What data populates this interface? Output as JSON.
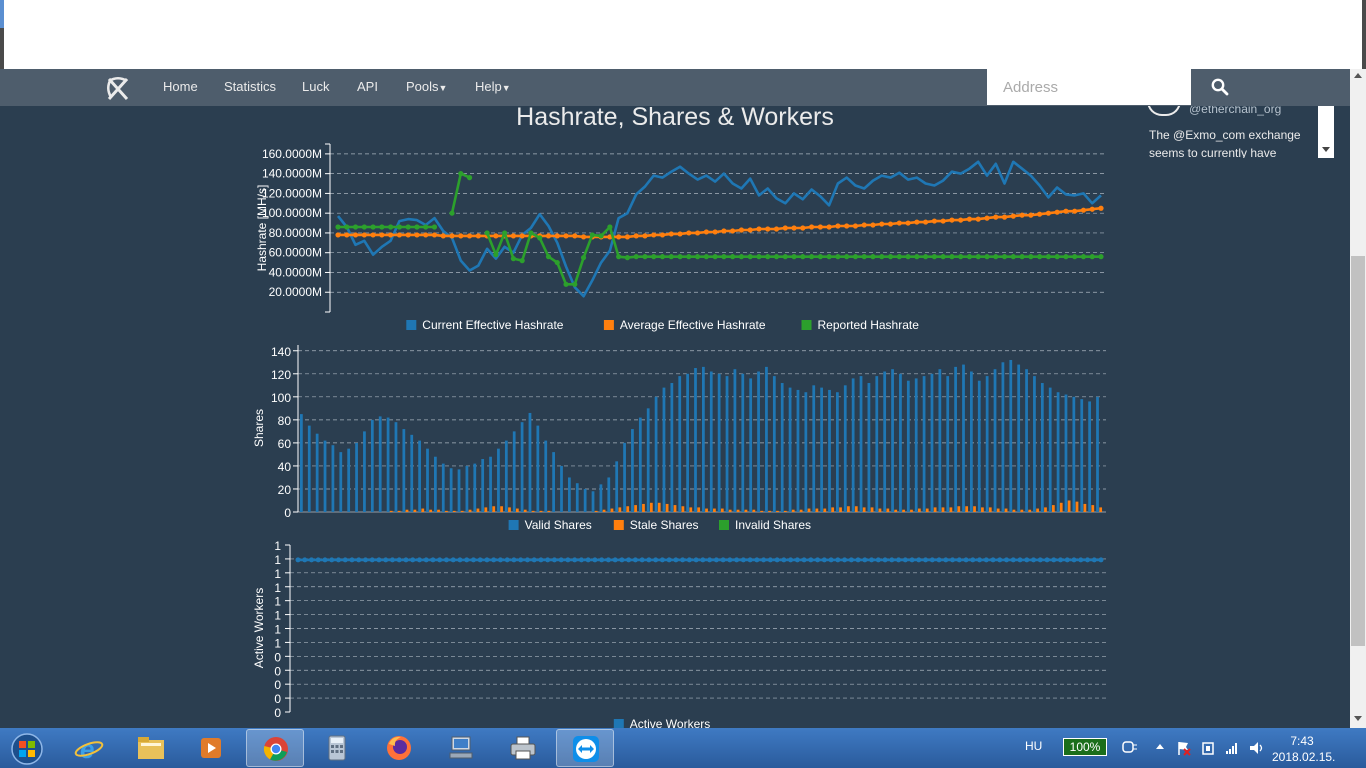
{
  "nav": {
    "items": [
      "Home",
      "Statistics",
      "Luck",
      "API",
      "Pools",
      "Help"
    ],
    "search_placeholder": "Address"
  },
  "page_title": "Hashrate, Shares & Workers",
  "twitter": {
    "handle": "@etherchain_org",
    "text": "The @Exmo_com exchange seems to currently have"
  },
  "taskbar": {
    "language": "HU",
    "battery": "100%",
    "time": "7:43",
    "date": "2018.02.15."
  },
  "colors": {
    "blue": "#1f77b4",
    "orange": "#ff7f0e",
    "green": "#2ca02c",
    "background": "#2b3e50"
  },
  "icons": [
    "pickaxe-logo-icon",
    "search-icon",
    "start-orb-icon",
    "internet-explorer-icon",
    "file-explorer-icon",
    "media-player-icon",
    "chrome-icon",
    "calculator-icon",
    "firefox-icon",
    "network-computer-icon",
    "printer-icon",
    "teamviewer-icon"
  ],
  "chart_data": [
    {
      "type": "line",
      "ylabel": "Hashrate [MH/s]",
      "ytick_labels": [
        "20.0000M",
        "40.0000M",
        "60.0000M",
        "80.0000M",
        "100.0000M",
        "120.0000M",
        "140.0000M",
        "160.0000M"
      ],
      "ylim": [
        0,
        170
      ],
      "legend_position": "bottom",
      "grid": true,
      "series": [
        {
          "name": "Current Effective Hashrate",
          "color": "#1f77b4",
          "values": [
            97,
            86,
            68,
            72,
            58,
            66,
            72,
            92,
            94,
            93,
            88,
            95,
            82,
            75,
            52,
            42,
            47,
            64,
            54,
            66,
            60,
            78,
            85,
            99,
            87,
            70,
            46,
            25,
            16,
            32,
            50,
            62,
            95,
            100,
            119,
            127,
            138,
            136,
            142,
            147,
            140,
            134,
            138,
            132,
            140,
            130,
            125,
            135,
            118,
            125,
            115,
            110,
            120,
            114,
            124,
            117,
            108,
            130,
            136,
            128,
            125,
            133,
            138,
            136,
            141,
            134,
            136,
            130,
            128,
            133,
            142,
            140,
            145,
            152,
            138,
            150,
            130,
            152,
            145,
            138,
            128,
            116,
            126,
            119,
            118,
            120,
            110,
            118
          ]
        },
        {
          "name": "Average Effective Hashrate",
          "color": "#ff7f0e",
          "values": [
            78,
            78,
            78,
            78,
            78,
            78,
            78,
            78,
            78,
            78,
            78,
            78,
            77,
            77,
            77,
            77,
            77,
            77,
            77,
            77,
            77,
            77,
            77,
            77,
            77,
            77,
            77,
            77,
            76,
            76,
            76,
            76,
            76,
            76,
            77,
            77,
            78,
            78,
            79,
            79,
            80,
            80,
            81,
            81,
            82,
            82,
            83,
            83,
            84,
            84,
            84,
            85,
            85,
            85,
            86,
            86,
            86,
            87,
            87,
            87,
            88,
            88,
            89,
            89,
            90,
            90,
            91,
            91,
            92,
            92,
            93,
            93,
            94,
            94,
            95,
            96,
            96,
            97,
            98,
            98,
            99,
            100,
            101,
            102,
            102,
            103,
            104,
            105
          ]
        },
        {
          "name": "Reported Hashrate",
          "color": "#2ca02c",
          "values": [
            86,
            86,
            86,
            86,
            86,
            86,
            86,
            86,
            86,
            86,
            86,
            86,
            null,
            100,
            140,
            136,
            null,
            80,
            58,
            80,
            54,
            52,
            80,
            75,
            56,
            50,
            28,
            28,
            55,
            78,
            77,
            86,
            56,
            55,
            56,
            56,
            56,
            56,
            56,
            56,
            56,
            56,
            56,
            56,
            56,
            56,
            56,
            56,
            56,
            56,
            56,
            56,
            56,
            56,
            56,
            56,
            56,
            56,
            56,
            56,
            56,
            56,
            56,
            56,
            56,
            56,
            56,
            56,
            56,
            56,
            56,
            56,
            56,
            56,
            56,
            56,
            56,
            56,
            56,
            56,
            56,
            56,
            56,
            56,
            56,
            56,
            56,
            56
          ]
        }
      ]
    },
    {
      "type": "bar",
      "ylabel": "Shares",
      "ylim": [
        0,
        145
      ],
      "ytick_labels": [
        "0",
        "20",
        "40",
        "60",
        "80",
        "100",
        "120",
        "140"
      ],
      "legend_position": "bottom",
      "grid": true,
      "series": [
        {
          "name": "Valid Shares",
          "color": "#1f77b4",
          "values": [
            85,
            75,
            68,
            62,
            58,
            52,
            55,
            60,
            70,
            80,
            83,
            82,
            78,
            72,
            67,
            62,
            55,
            48,
            42,
            38,
            37,
            40,
            42,
            46,
            48,
            55,
            62,
            70,
            78,
            86,
            75,
            62,
            52,
            40,
            30,
            25,
            20,
            18,
            24,
            30,
            44,
            60,
            72,
            82,
            90,
            100,
            108,
            112,
            118,
            120,
            125,
            126,
            122,
            120,
            118,
            124,
            120,
            116,
            122,
            126,
            118,
            112,
            108,
            106,
            104,
            110,
            108,
            106,
            104,
            110,
            116,
            118,
            112,
            118,
            122,
            124,
            120,
            114,
            116,
            118,
            120,
            124,
            118,
            126,
            128,
            122,
            114,
            118,
            124,
            130,
            132,
            128,
            124,
            118,
            112,
            108,
            104,
            102,
            100,
            98,
            96,
            100
          ]
        },
        {
          "name": "Stale Shares",
          "color": "#ff7f0e",
          "values": [
            0,
            0,
            0,
            0,
            0,
            0,
            0,
            0,
            0,
            0,
            0,
            1,
            1,
            2,
            2,
            3,
            2,
            2,
            1,
            1,
            1,
            2,
            3,
            4,
            5,
            5,
            4,
            3,
            2,
            1,
            1,
            1,
            0,
            0,
            0,
            0,
            0,
            1,
            2,
            3,
            4,
            5,
            6,
            7,
            8,
            8,
            7,
            6,
            5,
            4,
            4,
            3,
            3,
            3,
            2,
            2,
            2,
            2,
            1,
            1,
            1,
            1,
            2,
            2,
            3,
            3,
            3,
            4,
            4,
            5,
            5,
            4,
            4,
            3,
            3,
            2,
            2,
            2,
            3,
            3,
            4,
            4,
            4,
            5,
            5,
            5,
            4,
            4,
            3,
            3,
            2,
            2,
            2,
            3,
            4,
            6,
            8,
            10,
            9,
            7,
            6,
            4
          ]
        },
        {
          "name": "Invalid Shares",
          "color": "#2ca02c",
          "values": []
        }
      ]
    },
    {
      "type": "line",
      "ylabel": "Active Workers",
      "ytick_labels": [
        "0",
        "0",
        "0",
        "0",
        "0",
        "1",
        "1",
        "1",
        "1",
        "1",
        "1",
        "1",
        "1"
      ],
      "legend_position": "bottom",
      "grid": true,
      "series": [
        {
          "name": "Active Workers",
          "color": "#1f77b4",
          "constant_value": 1,
          "points": 120
        }
      ]
    }
  ]
}
